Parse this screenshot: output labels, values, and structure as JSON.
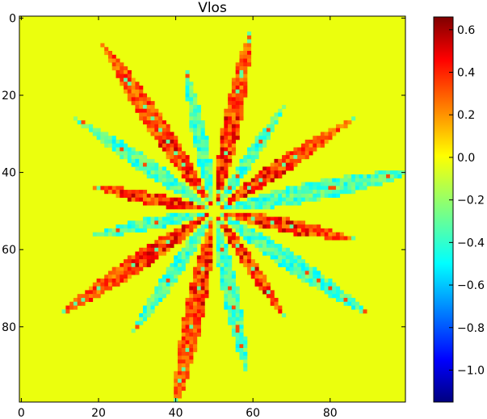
{
  "chart_data": {
    "type": "heatmap",
    "title": "Vlos",
    "x_ticks": [
      "0",
      "20",
      "40",
      "60",
      "80"
    ],
    "y_ticks": [
      "0",
      "20",
      "40",
      "60",
      "80"
    ],
    "x_range": [
      -0.5,
      99.5
    ],
    "y_range": [
      -0.5,
      99.5
    ],
    "y_inverted": true,
    "grid_size": [
      100,
      100
    ],
    "colormap": "jet",
    "color_range": [
      -1.15,
      0.66
    ],
    "colorbar_ticks": [
      "0.6",
      "0.4",
      "0.2",
      "0.0",
      "−0.2",
      "−0.4",
      "−0.6",
      "−0.8",
      "−1.0"
    ],
    "colorbar_tick_values": [
      0.6,
      0.4,
      0.2,
      0.0,
      -0.2,
      -0.4,
      -0.6,
      -0.8,
      -1.0
    ],
    "background_value": 0.0,
    "center": [
      50,
      50
    ],
    "pattern": "radial star of about 16 spikes reaching the image edges, alternating positive (orange/red, about +0.2 to +0.6) and negative (cyan, about -0.2 to -0.5) streaks on a zero-valued background"
  }
}
